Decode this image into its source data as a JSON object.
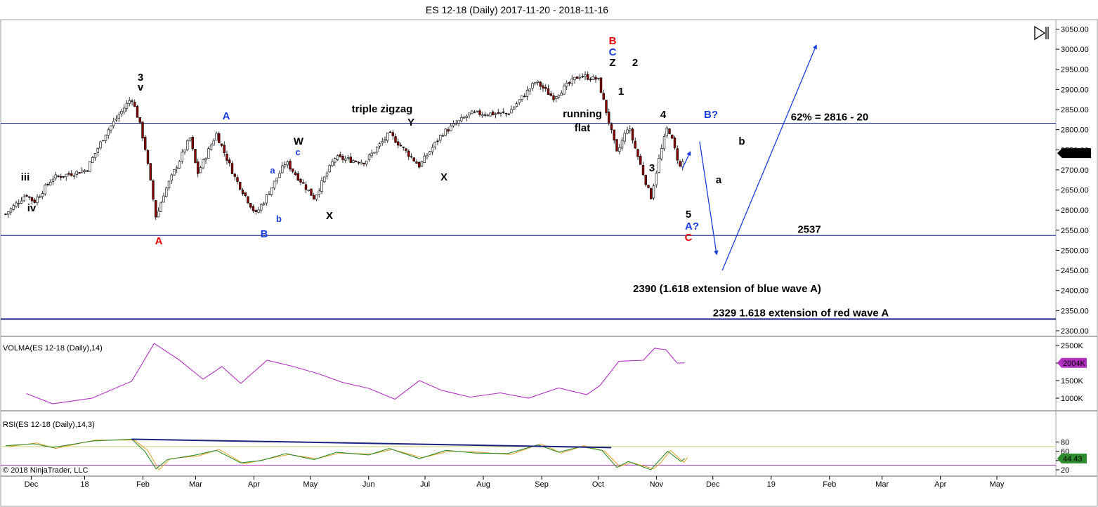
{
  "window": {
    "title": "ES 12-18 (Daily)  2017-11-20 - 2018-11-16",
    "copyright": "© 2018 NinjaTrader, LLC"
  },
  "colors": {
    "candle_up": "#ffffff",
    "candle_down": "#8b0000",
    "volma_line": "#b030c0",
    "rsi_line": "#2e8b2e",
    "rsi_signal": "#e0a020",
    "level_line": "#1a237e",
    "arrow": "#1a3cdc",
    "label_red": "#e00000",
    "label_blue": "#1a3cdc",
    "label_black": "#000000",
    "rsi_band": "#c8d070",
    "rsi_low": "#b030c0"
  },
  "chart_data": [
    {
      "type": "candlestick",
      "name": "ES 12-18 (Daily)",
      "y_axis": {
        "range": [
          2280,
          3060
        ],
        "ticks": [
          2300,
          2350,
          2400,
          2450,
          2500,
          2550,
          2600,
          2650,
          2700,
          2750,
          2800,
          2850,
          2900,
          2950,
          3000,
          3050
        ],
        "tick_labels": [
          "2300.00",
          "2350.00",
          "2400.00",
          "2450.00",
          "2500.00",
          "2550.00",
          "2600.00",
          "2650.00",
          "2700.00",
          "2750.00",
          "2800.00",
          "2850.00",
          "2900.00",
          "2950.00",
          "3000.00",
          "3050.00"
        ]
      },
      "x_axis": {
        "labels": [
          "Dec",
          "18",
          "Feb",
          "Mar",
          "Apr",
          "May",
          "Jun",
          "Jul",
          "Aug",
          "Sep",
          "Oct",
          "Nov",
          "Dec",
          "19",
          "Feb",
          "Mar",
          "Apr",
          "May"
        ]
      },
      "last_price": "2741.50",
      "close_path": [
        [
          "2017-11-20",
          2590
        ],
        [
          "2017-12-01",
          2640
        ],
        [
          "2017-12-05",
          2620
        ],
        [
          "2017-12-15",
          2680
        ],
        [
          "2018-01-02",
          2700
        ],
        [
          "2018-01-12",
          2790
        ],
        [
          "2018-01-26",
          2880
        ],
        [
          "2018-01-30",
          2820
        ],
        [
          "2018-02-02",
          2760
        ],
        [
          "2018-02-08",
          2580
        ],
        [
          "2018-02-12",
          2640
        ],
        [
          "2018-02-26",
          2780
        ],
        [
          "2018-03-02",
          2690
        ],
        [
          "2018-03-12",
          2790
        ],
        [
          "2018-03-22",
          2680
        ],
        [
          "2018-04-02",
          2590
        ],
        [
          "2018-04-06",
          2620
        ],
        [
          "2018-04-18",
          2720
        ],
        [
          "2018-05-03",
          2630
        ],
        [
          "2018-05-14",
          2730
        ],
        [
          "2018-05-30",
          2720
        ],
        [
          "2018-06-12",
          2790
        ],
        [
          "2018-06-28",
          2710
        ],
        [
          "2018-07-10",
          2790
        ],
        [
          "2018-07-25",
          2840
        ],
        [
          "2018-08-14",
          2840
        ],
        [
          "2018-08-29",
          2920
        ],
        [
          "2018-09-07",
          2880
        ],
        [
          "2018-09-21",
          2935
        ],
        [
          "2018-10-01",
          2925
        ],
        [
          "2018-10-11",
          2740
        ],
        [
          "2018-10-17",
          2810
        ],
        [
          "2018-10-29",
          2630
        ],
        [
          "2018-11-02",
          2720
        ],
        [
          "2018-11-07",
          2810
        ],
        [
          "2018-11-14",
          2700
        ],
        [
          "2018-11-16",
          2741.5
        ]
      ],
      "levels": [
        {
          "value": 2816,
          "label": "62% = 2816 - 20"
        },
        {
          "value": 2537,
          "label": "2537"
        },
        {
          "value": 2329,
          "label": "2329  1.618 extension of red wave A"
        }
      ],
      "annotations": [
        {
          "text": "triple zigzag"
        },
        {
          "text": "running"
        },
        {
          "text": "flat"
        },
        {
          "text": "2390 (1.618 extension of blue wave A)"
        }
      ],
      "wave_labels": [
        {
          "text": "iii",
          "color": "black"
        },
        {
          "text": "iv",
          "color": "black"
        },
        {
          "text": "3",
          "color": "black"
        },
        {
          "text": "v",
          "color": "black"
        },
        {
          "text": "A",
          "color": "red"
        },
        {
          "text": "A",
          "color": "blue"
        },
        {
          "text": "B",
          "color": "blue"
        },
        {
          "text": "a",
          "color": "blue"
        },
        {
          "text": "b",
          "color": "blue"
        },
        {
          "text": "W",
          "color": "black"
        },
        {
          "text": "c",
          "color": "blue"
        },
        {
          "text": "X",
          "color": "black"
        },
        {
          "text": "Y",
          "color": "black"
        },
        {
          "text": "X",
          "color": "black"
        },
        {
          "text": "B",
          "color": "red"
        },
        {
          "text": "C",
          "color": "blue"
        },
        {
          "text": "Z",
          "color": "black"
        },
        {
          "text": "1",
          "color": "black"
        },
        {
          "text": "2",
          "color": "black"
        },
        {
          "text": "3",
          "color": "black"
        },
        {
          "text": "4",
          "color": "black"
        },
        {
          "text": "5",
          "color": "black"
        },
        {
          "text": "A?",
          "color": "blue"
        },
        {
          "text": "C",
          "color": "red"
        },
        {
          "text": "B?",
          "color": "blue"
        },
        {
          "text": "a",
          "color": "black"
        },
        {
          "text": "b",
          "color": "black"
        }
      ],
      "projected_arrows": [
        {
          "from": [
            "2018-11-15",
            2705
          ],
          "to": [
            "2018-11-19",
            2745
          ]
        },
        {
          "from": [
            "2018-11-24",
            2770
          ],
          "to": [
            "2018-12-03",
            2490
          ]
        },
        {
          "from": [
            "2018-12-06",
            2450
          ],
          "to": [
            "2019-01-25",
            3010
          ]
        }
      ]
    },
    {
      "type": "line",
      "name": "VOLMA(ES 12-18 (Daily),14)",
      "y_axis": {
        "range": [
          750,
          2600
        ],
        "tick_labels": [
          "1000K",
          "1500K",
          "2000K",
          "2500K"
        ],
        "ticks": [
          1000,
          1500,
          2000,
          2500
        ]
      },
      "last_value": "2004K",
      "series": [
        [
          "2017-12-01",
          1130
        ],
        [
          "2017-12-15",
          840
        ],
        [
          "2018-01-05",
          1000
        ],
        [
          "2018-01-26",
          1480
        ],
        [
          "2018-02-07",
          2560
        ],
        [
          "2018-02-20",
          2100
        ],
        [
          "2018-03-05",
          1540
        ],
        [
          "2018-03-15",
          1900
        ],
        [
          "2018-03-25",
          1420
        ],
        [
          "2018-04-08",
          2080
        ],
        [
          "2018-04-22",
          1900
        ],
        [
          "2018-05-05",
          1700
        ],
        [
          "2018-05-18",
          1450
        ],
        [
          "2018-06-01",
          1280
        ],
        [
          "2018-06-15",
          970
        ],
        [
          "2018-06-28",
          1500
        ],
        [
          "2018-07-10",
          1220
        ],
        [
          "2018-07-25",
          1030
        ],
        [
          "2018-08-10",
          1150
        ],
        [
          "2018-08-25",
          1000
        ],
        [
          "2018-09-10",
          1290
        ],
        [
          "2018-09-25",
          1100
        ],
        [
          "2018-10-02",
          1360
        ],
        [
          "2018-10-12",
          2050
        ],
        [
          "2018-10-25",
          2080
        ],
        [
          "2018-10-31",
          2420
        ],
        [
          "2018-11-06",
          2380
        ],
        [
          "2018-11-12",
          2000
        ],
        [
          "2018-11-16",
          2004
        ]
      ]
    },
    {
      "type": "line",
      "name": "RSI(ES 12-18 (Daily),14,3)",
      "y_axis": {
        "range": [
          15,
          92
        ],
        "tick_labels": [
          "20",
          "40",
          "60",
          "80"
        ],
        "ticks": [
          20,
          40,
          60,
          80
        ]
      },
      "bands": [
        70,
        30
      ],
      "last_value": "44.43",
      "trendline": {
        "from": [
          "2018-01-26",
          86
        ],
        "to": [
          "2018-10-08",
          68
        ]
      },
      "series": [
        [
          "2017-11-20",
          72
        ],
        [
          "2017-12-05",
          76
        ],
        [
          "2017-12-15",
          68
        ],
        [
          "2018-01-05",
          82
        ],
        [
          "2018-01-26",
          86
        ],
        [
          "2018-02-02",
          60
        ],
        [
          "2018-02-08",
          22
        ],
        [
          "2018-02-14",
          42
        ],
        [
          "2018-03-01",
          52
        ],
        [
          "2018-03-12",
          62
        ],
        [
          "2018-03-25",
          35
        ],
        [
          "2018-04-05",
          40
        ],
        [
          "2018-04-18",
          55
        ],
        [
          "2018-05-03",
          42
        ],
        [
          "2018-05-15",
          58
        ],
        [
          "2018-06-01",
          52
        ],
        [
          "2018-06-12",
          66
        ],
        [
          "2018-06-28",
          44
        ],
        [
          "2018-07-12",
          62
        ],
        [
          "2018-07-28",
          56
        ],
        [
          "2018-08-14",
          55
        ],
        [
          "2018-08-30",
          74
        ],
        [
          "2018-09-10",
          58
        ],
        [
          "2018-09-22",
          70
        ],
        [
          "2018-10-03",
          62
        ],
        [
          "2018-10-11",
          25
        ],
        [
          "2018-10-17",
          38
        ],
        [
          "2018-10-29",
          20
        ],
        [
          "2018-11-02",
          38
        ],
        [
          "2018-11-07",
          60
        ],
        [
          "2018-11-14",
          38
        ],
        [
          "2018-11-16",
          44.43
        ]
      ]
    }
  ]
}
